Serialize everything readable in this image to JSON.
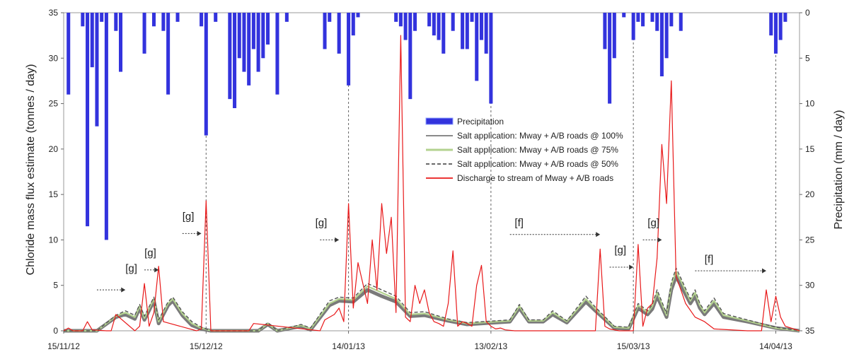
{
  "chart_data": {
    "type": "line",
    "title": "",
    "ylabel_left": "Chloride mass flux estimate  (tonnes / day)",
    "ylabel_right": "Precipitation (mm / day)",
    "ylim_left": [
      0,
      35
    ],
    "ylim_right": [
      0,
      35
    ],
    "right_axis_inverted": true,
    "yticks_left": [
      "0",
      "5",
      "10",
      "15",
      "20",
      "25",
      "30",
      "35"
    ],
    "yticks_right": [
      "0",
      "5",
      "10",
      "15",
      "20",
      "25",
      "30",
      "35"
    ],
    "x_start": "2012-11-15",
    "x_end": "2013-04-19",
    "x_ticks": [
      {
        "date": "2012-11-15",
        "label": "15/11/12"
      },
      {
        "date": "2012-12-15",
        "label": "15/12/12"
      },
      {
        "date": "2013-01-14",
        "label": "14/01/13"
      },
      {
        "date": "2013-02-13",
        "label": "13/02/13"
      },
      {
        "date": "2013-03-15",
        "label": "15/03/13"
      },
      {
        "date": "2013-04-14",
        "label": "14/04/13"
      }
    ],
    "vertical_markers": [
      "2012-12-15",
      "2013-01-14",
      "2013-02-13",
      "2013-03-15",
      "2013-04-14"
    ],
    "legend": {
      "position": "center-right",
      "entries": [
        {
          "name": "Precipitation",
          "color": "#3333dd",
          "style": "bar"
        },
        {
          "name": "Salt application: Mway + A/B roads @ 100%",
          "color": "#7a7a7a",
          "style": "solid"
        },
        {
          "name": "Salt application: Mway + A/B roads @ 75%",
          "color": "#b3d28f",
          "style": "solid"
        },
        {
          "name": "Salt application: Mway + A/B roads @ 50%",
          "color": "#555555",
          "style": "dashed"
        },
        {
          "name": "Discharge to stream of Mway + A/B roads",
          "color": "#e8191a",
          "style": "solid"
        }
      ]
    },
    "precipitation": {
      "name": "Precipitation",
      "axis": "right",
      "x": [
        "2012-11-16",
        "2012-11-19",
        "2012-11-20",
        "2012-11-21",
        "2012-11-22",
        "2012-11-23",
        "2012-11-24",
        "2012-11-26",
        "2012-11-27",
        "2012-12-02",
        "2012-12-04",
        "2012-12-06",
        "2012-12-07",
        "2012-12-09",
        "2012-12-14",
        "2012-12-15",
        "2012-12-17",
        "2012-12-20",
        "2012-12-21",
        "2012-12-22",
        "2012-12-23",
        "2012-12-24",
        "2012-12-25",
        "2012-12-26",
        "2012-12-27",
        "2012-12-28",
        "2012-12-30",
        "2013-01-01",
        "2013-01-09",
        "2013-01-10",
        "2013-01-12",
        "2013-01-14",
        "2013-01-15",
        "2013-01-16",
        "2013-01-24",
        "2013-01-25",
        "2013-01-26",
        "2013-01-27",
        "2013-01-28",
        "2013-01-31",
        "2013-02-01",
        "2013-02-02",
        "2013-02-03",
        "2013-02-05",
        "2013-02-07",
        "2013-02-08",
        "2013-02-09",
        "2013-02-10",
        "2013-02-11",
        "2013-02-12",
        "2013-02-13",
        "2013-03-09",
        "2013-03-10",
        "2013-03-11",
        "2013-03-13",
        "2013-03-15",
        "2013-03-16",
        "2013-03-17",
        "2013-03-19",
        "2013-03-20",
        "2013-03-21",
        "2013-03-22",
        "2013-03-23",
        "2013-03-25",
        "2013-04-13",
        "2013-04-14",
        "2013-04-15",
        "2013-04-16"
      ],
      "values": [
        9,
        1.5,
        23.5,
        6,
        12.5,
        1,
        25,
        2,
        6.5,
        4.5,
        1.5,
        2,
        9,
        1,
        1.5,
        13.5,
        1,
        9.5,
        10.5,
        5,
        6.5,
        8,
        4,
        6.5,
        5,
        3.5,
        9,
        1,
        4,
        1,
        4.5,
        8,
        2.5,
        0.5,
        1,
        1.5,
        3,
        9.5,
        2,
        1.5,
        2.5,
        3,
        4.5,
        2,
        4,
        4,
        1,
        7.5,
        3,
        4.5,
        10,
        4,
        10,
        5,
        0.5,
        3,
        1,
        1.5,
        1,
        2,
        7,
        5,
        1.5,
        2,
        2.5,
        4.5,
        3,
        1
      ]
    },
    "series": [
      {
        "name": "Salt application: Mway + A/B roads @ 100%",
        "color": "#7a7a7a",
        "x": [
          "2012-11-15",
          "2012-11-22",
          "2012-11-26",
          "2012-11-28",
          "2012-11-30",
          "2012-12-01",
          "2012-12-02",
          "2012-12-04",
          "2012-12-05",
          "2012-12-07",
          "2012-12-08",
          "2012-12-10",
          "2012-12-12",
          "2012-12-14",
          "2012-12-16",
          "2012-12-26",
          "2012-12-28",
          "2012-12-30",
          "2013-01-04",
          "2013-01-06",
          "2013-01-10",
          "2013-01-12",
          "2013-01-15",
          "2013-01-18",
          "2013-01-21",
          "2013-01-24",
          "2013-01-27",
          "2013-01-30",
          "2013-02-04",
          "2013-02-08",
          "2013-02-14",
          "2013-02-17",
          "2013-02-19",
          "2013-02-21",
          "2013-02-24",
          "2013-02-26",
          "2013-03-01",
          "2013-03-05",
          "2013-03-07",
          "2013-03-11",
          "2013-03-14",
          "2013-03-16",
          "2013-03-18",
          "2013-03-19",
          "2013-03-20",
          "2013-03-22",
          "2013-03-23",
          "2013-03-24",
          "2013-03-25",
          "2013-03-27",
          "2013-03-28",
          "2013-03-29",
          "2013-03-30",
          "2013-04-01",
          "2013-04-03",
          "2013-04-08",
          "2013-04-14",
          "2013-04-19"
        ],
        "values": [
          0,
          0,
          1.5,
          1.8,
          1.3,
          2.5,
          1.2,
          3.3,
          0.8,
          2.8,
          3.3,
          1.7,
          0.6,
          0.2,
          0,
          0,
          0.7,
          0,
          0.5,
          0.1,
          2.8,
          3.3,
          3.2,
          4.5,
          3.8,
          3.2,
          1.6,
          1.7,
          1.1,
          0.7,
          0.9,
          1.0,
          2.5,
          1.0,
          1.0,
          1.8,
          0.9,
          3.2,
          2.2,
          0.3,
          0.2,
          2.5,
          1.8,
          2.4,
          3.8,
          1.5,
          4.5,
          6.0,
          5.0,
          3.0,
          3.8,
          2.5,
          1.8,
          3.0,
          1.5,
          1.0,
          0.3,
          0
        ]
      },
      {
        "name": "Salt application: Mway + A/B roads @ 75%",
        "color": "#b3d28f",
        "x": [
          "2012-11-15",
          "2012-11-22",
          "2012-11-26",
          "2012-11-28",
          "2012-11-30",
          "2012-12-01",
          "2012-12-02",
          "2012-12-04",
          "2012-12-05",
          "2012-12-07",
          "2012-12-08",
          "2012-12-10",
          "2012-12-12",
          "2012-12-14",
          "2012-12-16",
          "2012-12-26",
          "2012-12-28",
          "2012-12-30",
          "2013-01-04",
          "2013-01-06",
          "2013-01-10",
          "2013-01-12",
          "2013-01-15",
          "2013-01-18",
          "2013-01-21",
          "2013-01-24",
          "2013-01-27",
          "2013-01-30",
          "2013-02-04",
          "2013-02-08",
          "2013-02-14",
          "2013-02-17",
          "2013-02-19",
          "2013-02-21",
          "2013-02-24",
          "2013-02-26",
          "2013-03-01",
          "2013-03-05",
          "2013-03-07",
          "2013-03-11",
          "2013-03-14",
          "2013-03-16",
          "2013-03-18",
          "2013-03-19",
          "2013-03-20",
          "2013-03-22",
          "2013-03-23",
          "2013-03-24",
          "2013-03-25",
          "2013-03-27",
          "2013-03-28",
          "2013-03-29",
          "2013-03-30",
          "2013-04-01",
          "2013-04-03",
          "2013-04-08",
          "2013-04-14",
          "2013-04-19"
        ],
        "values": [
          0,
          0,
          1.6,
          2.0,
          1.5,
          2.7,
          1.4,
          3.5,
          1.0,
          3.0,
          3.5,
          1.9,
          0.8,
          0.3,
          0,
          0,
          0.8,
          0,
          0.6,
          0.2,
          3.0,
          3.5,
          3.4,
          4.9,
          4.2,
          3.5,
          1.8,
          1.9,
          1.2,
          0.8,
          1.0,
          1.1,
          2.7,
          1.1,
          1.1,
          2.0,
          1.0,
          3.5,
          2.4,
          0.4,
          0.3,
          2.8,
          2.0,
          2.7,
          4.2,
          1.7,
          5.0,
          6.5,
          5.5,
          3.3,
          4.2,
          2.8,
          2.0,
          3.3,
          1.7,
          1.1,
          0.3,
          0
        ]
      },
      {
        "name": "Salt application: Mway + A/B roads @ 50%",
        "color": "#555555",
        "x": [
          "2012-11-15",
          "2012-11-22",
          "2012-11-26",
          "2012-11-28",
          "2012-11-30",
          "2012-12-01",
          "2012-12-02",
          "2012-12-04",
          "2012-12-05",
          "2012-12-07",
          "2012-12-08",
          "2012-12-10",
          "2012-12-12",
          "2012-12-14",
          "2012-12-16",
          "2012-12-26",
          "2012-12-28",
          "2012-12-30",
          "2013-01-04",
          "2013-01-06",
          "2013-01-10",
          "2013-01-12",
          "2013-01-15",
          "2013-01-18",
          "2013-01-21",
          "2013-01-24",
          "2013-01-27",
          "2013-01-30",
          "2013-02-04",
          "2013-02-08",
          "2013-02-14",
          "2013-02-17",
          "2013-02-19",
          "2013-02-21",
          "2013-02-24",
          "2013-02-26",
          "2013-03-01",
          "2013-03-05",
          "2013-03-07",
          "2013-03-11",
          "2013-03-14",
          "2013-03-16",
          "2013-03-18",
          "2013-03-19",
          "2013-03-20",
          "2013-03-22",
          "2013-03-23",
          "2013-03-24",
          "2013-03-25",
          "2013-03-27",
          "2013-03-28",
          "2013-03-29",
          "2013-03-30",
          "2013-04-01",
          "2013-04-03",
          "2013-04-08",
          "2013-04-14",
          "2013-04-19"
        ],
        "values": [
          0,
          0,
          1.7,
          2.2,
          1.7,
          2.9,
          1.6,
          3.7,
          1.2,
          3.2,
          3.7,
          2.1,
          1.0,
          0.4,
          0,
          0,
          0.9,
          0,
          0.7,
          0.3,
          3.3,
          3.7,
          3.6,
          5.2,
          4.5,
          3.8,
          2.0,
          2.1,
          1.3,
          0.9,
          1.1,
          1.2,
          2.9,
          1.2,
          1.2,
          2.2,
          1.1,
          3.8,
          2.6,
          0.5,
          0.4,
          3.0,
          2.2,
          2.9,
          4.5,
          1.9,
          5.3,
          6.9,
          5.8,
          3.5,
          4.5,
          3.0,
          2.2,
          3.6,
          1.9,
          1.2,
          0.4,
          0
        ]
      },
      {
        "name": "Discharge to stream of Mway + A/B roads",
        "color": "#e8191a",
        "x": [
          "2012-11-15",
          "2012-11-16",
          "2012-11-17",
          "2012-11-19",
          "2012-11-20",
          "2012-11-21",
          "2012-11-24",
          "2012-11-25",
          "2012-11-26",
          "2012-11-30",
          "2012-12-01",
          "2012-12-02",
          "2012-12-03",
          "2012-12-04",
          "2012-12-05",
          "2012-12-06",
          "2012-12-13",
          "2012-12-14",
          "2012-12-15",
          "2012-12-16",
          "2012-12-24",
          "2012-12-25",
          "2013-01-08",
          "2013-01-09",
          "2013-01-11",
          "2013-01-12",
          "2013-01-13",
          "2013-01-14",
          "2013-01-15",
          "2013-01-16",
          "2013-01-18",
          "2013-01-19",
          "2013-01-20",
          "2013-01-21",
          "2013-01-22",
          "2013-01-23",
          "2013-01-24",
          "2013-01-25",
          "2013-01-26",
          "2013-01-27",
          "2013-01-28",
          "2013-01-29",
          "2013-01-30",
          "2013-01-31",
          "2013-02-01",
          "2013-02-02",
          "2013-02-03",
          "2013-02-04",
          "2013-02-05",
          "2013-02-06",
          "2013-02-07",
          "2013-02-08",
          "2013-02-09",
          "2013-02-10",
          "2013-02-11",
          "2013-02-12",
          "2013-02-13",
          "2013-02-14",
          "2013-02-15",
          "2013-02-16",
          "2013-02-18",
          "2013-03-07",
          "2013-03-08",
          "2013-03-09",
          "2013-03-10",
          "2013-03-12",
          "2013-03-15",
          "2013-03-16",
          "2013-03-17",
          "2013-03-18",
          "2013-03-19",
          "2013-03-20",
          "2013-03-21",
          "2013-03-22",
          "2013-03-23",
          "2013-03-24",
          "2013-03-25",
          "2013-03-26",
          "2013-03-28",
          "2013-03-30",
          "2013-04-01",
          "2013-04-08",
          "2013-04-11",
          "2013-04-12",
          "2013-04-13",
          "2013-04-14",
          "2013-04-15",
          "2013-04-16",
          "2013-04-19"
        ],
        "values": [
          0,
          0.3,
          0,
          0,
          1.0,
          0.1,
          0,
          0,
          1.8,
          0,
          0.5,
          5.2,
          0.5,
          2.0,
          7.1,
          1.0,
          0,
          0.2,
          14.3,
          0,
          0,
          0.8,
          0,
          1.2,
          1.8,
          2.5,
          1.0,
          14.0,
          2.5,
          7.5,
          3.0,
          10.0,
          4.5,
          14.0,
          8.5,
          12.5,
          2.0,
          32.5,
          1.5,
          1.0,
          5.0,
          3.0,
          4.5,
          2.0,
          1.0,
          0.8,
          0.5,
          3.0,
          8.8,
          0.5,
          1.0,
          0.8,
          0.5,
          5.0,
          7.2,
          1.0,
          0.5,
          0.2,
          0.3,
          0.1,
          0,
          0,
          9.0,
          0.5,
          0.2,
          0,
          0,
          9.5,
          0.5,
          2.5,
          3.0,
          8.0,
          20.5,
          14.0,
          27.5,
          6.0,
          4.5,
          3.0,
          1.5,
          1.0,
          0.2,
          0,
          0,
          4.5,
          1.0,
          3.8,
          1.5,
          0.5,
          0
        ]
      }
    ],
    "annotations": [
      {
        "label": "[g]",
        "x": "2012-11-28",
        "y": 6.5,
        "arrow_from": "2012-11-22",
        "arrow_to": "2012-11-28",
        "arrow_y": 4.5
      },
      {
        "label": "[g]",
        "x": "2012-12-02",
        "y": 8.2,
        "arrow_from": "2012-12-02",
        "arrow_to": "2012-12-05",
        "arrow_y": 6.7
      },
      {
        "label": "[g]",
        "x": "2012-12-10",
        "y": 12.2,
        "arrow_from": "2012-12-10",
        "arrow_to": "2012-12-14",
        "arrow_y": 10.7
      },
      {
        "label": "[g]",
        "x": "2013-01-07",
        "y": 11.5,
        "arrow_from": "2013-01-08",
        "arrow_to": "2013-01-12",
        "arrow_y": 10.0
      },
      {
        "label": "[f]",
        "x": "2013-02-18",
        "y": 11.5,
        "arrow_from": "2013-02-17",
        "arrow_to": "2013-03-08",
        "arrow_y": 10.6
      },
      {
        "label": "[g]",
        "x": "2013-03-11",
        "y": 8.5,
        "arrow_from": "2013-03-10",
        "arrow_to": "2013-03-15",
        "arrow_y": 7.0
      },
      {
        "label": "[g]",
        "x": "2013-03-18",
        "y": 11.5,
        "arrow_from": "2013-03-17",
        "arrow_to": "2013-03-21",
        "arrow_y": 10.0
      },
      {
        "label": "[f]",
        "x": "2013-03-30",
        "y": 7.5,
        "arrow_from": "2013-03-28",
        "arrow_to": "2013-04-12",
        "arrow_y": 6.6
      }
    ]
  }
}
